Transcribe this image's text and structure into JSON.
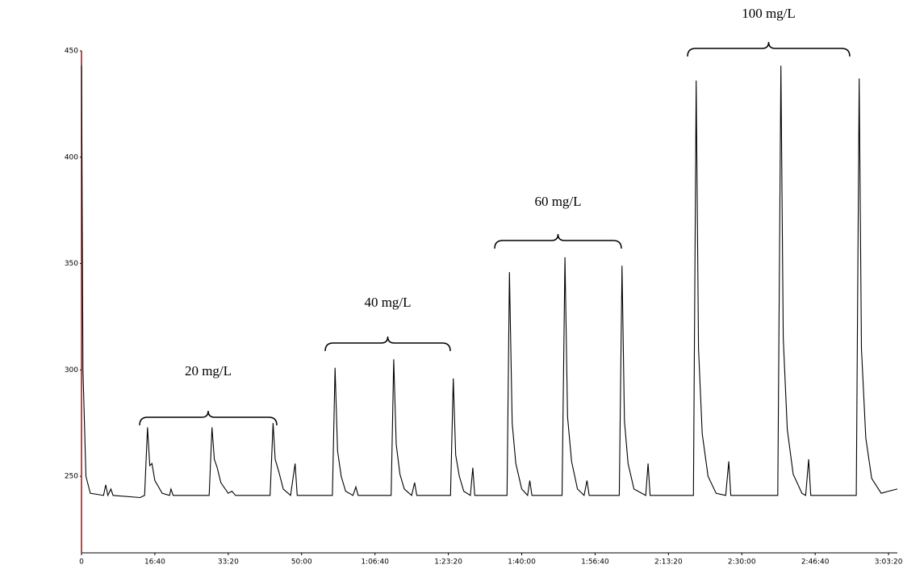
{
  "chart_data": {
    "type": "line",
    "annotations": [
      "20 mg/L",
      "40 mg/L",
      "60 mg/L",
      "100 mg/L"
    ],
    "color": "#000000",
    "x": [
      0,
      20,
      60,
      120,
      300,
      330,
      360,
      400,
      430,
      800,
      860,
      900,
      930,
      960,
      1000,
      1100,
      1200,
      1220,
      1250,
      1500,
      1740,
      1778,
      1810,
      1850,
      1900,
      2000,
      2050,
      2100,
      2570,
      2611,
      2640,
      2690,
      2750,
      2850,
      2911,
      2940,
      3420,
      3456,
      3490,
      3540,
      3600,
      3700,
      3740,
      3770,
      4220,
      4256,
      4290,
      4340,
      4400,
      4500,
      4540,
      4570,
      5030,
      5067,
      5100,
      5150,
      5210,
      5300,
      5333,
      5360,
      5800,
      5833,
      5870,
      5920,
      6000,
      6080,
      6110,
      6140,
      6550,
      6589,
      6625,
      6680,
      6760,
      6850,
      6890,
      6920,
      7330,
      7367,
      7400,
      7450,
      7530,
      7690,
      7722,
      7750,
      8340,
      8378,
      8410,
      8460,
      8540,
      8650,
      8780,
      8822,
      8850,
      9490,
      9533,
      9565,
      9620,
      9700,
      9820,
      9870,
      9911,
      9940,
      10560,
      10600,
      10630,
      10690,
      10770,
      10900,
      11000,
      11120
    ],
    "values": [
      443,
      300,
      250,
      242,
      241,
      246,
      241,
      244,
      241,
      240,
      241,
      273,
      255,
      256,
      248,
      242,
      241,
      244,
      241,
      241,
      241,
      273,
      258,
      254,
      247,
      242,
      243,
      241,
      241,
      275,
      258,
      252,
      244,
      241,
      256,
      241,
      241,
      301,
      262,
      250,
      243,
      241,
      245,
      241,
      241,
      305,
      265,
      251,
      244,
      241,
      247,
      241,
      241,
      296,
      260,
      250,
      243,
      241,
      254,
      241,
      241,
      346,
      275,
      256,
      244,
      241,
      248,
      241,
      241,
      353,
      278,
      257,
      244,
      241,
      248,
      241,
      241,
      349,
      276,
      256,
      244,
      241,
      256,
      241,
      241,
      436,
      310,
      270,
      250,
      242,
      241,
      257,
      241,
      241,
      443,
      315,
      272,
      251,
      242,
      241,
      258,
      241,
      241,
      437,
      310,
      268,
      249,
      242,
      243,
      244
    ],
    "xlim": [
      0,
      11120
    ],
    "xticks": [
      0,
      {
        "value": 1000,
        "label": "16:40"
      },
      {
        "value": 2000,
        "label": "33:20"
      },
      {
        "value": 3000,
        "label": "50:00"
      },
      {
        "value": 4000,
        "label": "1:06:40"
      },
      {
        "value": 5000,
        "label": "1:23:20"
      },
      {
        "value": 6000,
        "label": "1:40:00"
      },
      {
        "value": 7000,
        "label": "1:56:40"
      },
      {
        "value": 8000,
        "label": "2:13:20"
      },
      {
        "value": 9000,
        "label": "2:30:00"
      },
      {
        "value": 10000,
        "label": "2:46:40"
      },
      {
        "value": 11000,
        "label": "3:03:20"
      }
    ],
    "ylim": [
      214,
      450
    ],
    "yticks": [
      250,
      300,
      350,
      400,
      450
    ]
  }
}
